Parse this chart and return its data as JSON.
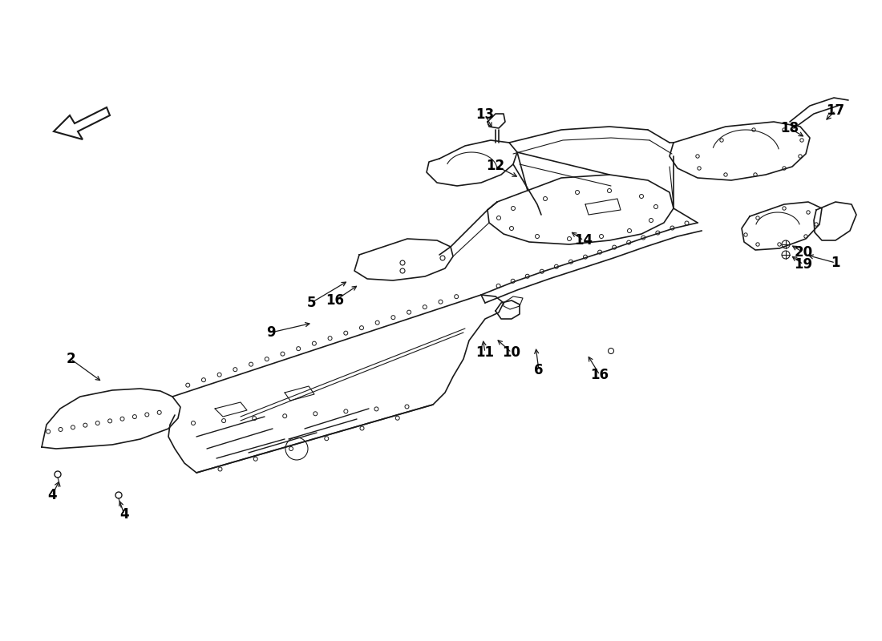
{
  "background_color": "#ffffff",
  "line_color": "#1a1a1a",
  "text_color": "#000000",
  "figsize": [
    11.0,
    8.0
  ],
  "dpi": 100,
  "callouts": [
    [
      "1",
      1042,
      328,
      1005,
      318
    ],
    [
      "2",
      88,
      448,
      128,
      477
    ],
    [
      "4",
      65,
      618,
      75,
      598
    ],
    [
      "4",
      155,
      642,
      148,
      622
    ],
    [
      "5",
      388,
      378,
      435,
      350
    ],
    [
      "6",
      672,
      462,
      668,
      432
    ],
    [
      "9",
      338,
      415,
      390,
      403
    ],
    [
      "10",
      638,
      440,
      618,
      422
    ],
    [
      "11",
      605,
      440,
      602,
      422
    ],
    [
      "12",
      618,
      207,
      648,
      222
    ],
    [
      "13",
      605,
      143,
      615,
      162
    ],
    [
      "14",
      728,
      300,
      710,
      288
    ],
    [
      "16",
      418,
      375,
      448,
      355
    ],
    [
      "16",
      748,
      468,
      732,
      442
    ],
    [
      "17",
      1042,
      138,
      1028,
      152
    ],
    [
      "18",
      985,
      160,
      1005,
      172
    ],
    [
      "19",
      1002,
      330,
      985,
      318
    ],
    [
      "20",
      1002,
      315,
      985,
      305
    ]
  ]
}
